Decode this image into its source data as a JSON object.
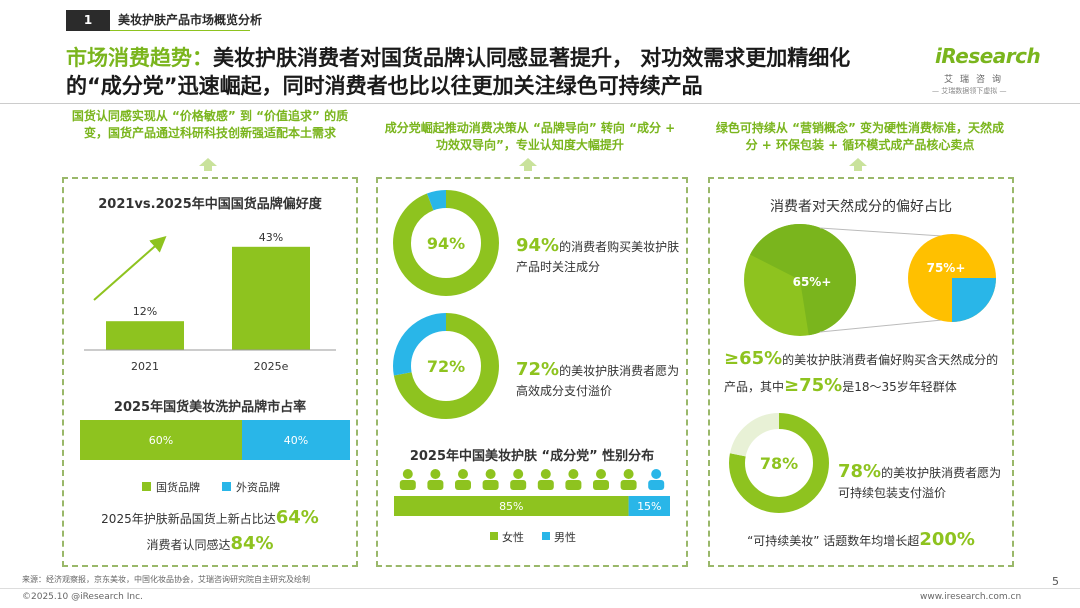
{
  "header": {
    "section_number": "1",
    "section_title": "美妆护肤产品市场概览分析",
    "headline_lead": "市场消费趋势：",
    "headline_rest": "美妆护肤消费者对国货品牌认同感显著提升， 对功效需求更加精细化的“成分党”迅速崛起，同时消费者也比以往更加关注绿色可持续产品",
    "logo_word": "iResearch",
    "logo_cn": "艾瑞咨询",
    "logo_tag": "— 艾瑞数据领下虚拟 —"
  },
  "columns": {
    "left_intro": "国货认同感实现从 “价格敏感” 到 “价值追求” 的质变，国货产品通过科研科技创新强适配本土需求",
    "middle_intro": "成分党崛起推动消费决策从 “品牌导向” 转向 “成分 + 功效双导向”，专业认知度大幅提升",
    "right_intro": "绿色可持续从 “营销概念” 变为硬性消费标准，天然成分 + 环保包装 + 循环模式成产品核心卖点"
  },
  "left_panel": {
    "stat_line1_text": "2025年护肤新品国货上新占比达",
    "stat_line1_pct": "64%",
    "stat_line2_text": "消费者认同感达",
    "stat_line2_pct": "84%"
  },
  "middle_panel": {
    "stat1_pct": "94%",
    "stat1_text": "的消费者购买美妆护肤产品时关注成分",
    "stat2_pct": "72%",
    "stat2_text": "的美妆护肤消费者愿为高效成分支付溢价"
  },
  "right_panel": {
    "stat1_pct": "≥65%",
    "stat1_text_a": "的美妆护肤消费者偏好购买含天然成分的产品，其中",
    "stat1_pct2": "≥75%",
    "stat1_text_b": "是18～35岁年轻群体",
    "stat2_pct": "78%",
    "stat2_text": "的美妆护肤消费者愿为可持续包装支付溢价",
    "stat3_text": "“可持续美妆” 话题数年均增长超",
    "stat3_pct": "200%"
  },
  "colors": {
    "green": "#8ec31f",
    "light_green": "#c9e29b",
    "blue": "#29b6e8",
    "yellow": "#ffc000",
    "dash": "#9ab86a"
  },
  "chart_data": [
    {
      "type": "bar",
      "title": "2021vs.2025年中国国货品牌偏好度",
      "categories": [
        "2021",
        "2025e"
      ],
      "values": [
        12,
        43
      ],
      "value_labels": [
        "12%",
        "43%"
      ],
      "ylim": [
        0,
        50
      ]
    },
    {
      "type": "bar",
      "title": "2025年国货美妆洗护品牌市占率",
      "stacked": true,
      "orientation": "horizontal",
      "series": [
        {
          "name": "国货品牌",
          "values": [
            60
          ],
          "label": "60%",
          "color": "#8ec31f"
        },
        {
          "name": "外资品牌",
          "values": [
            40
          ],
          "label": "40%",
          "color": "#29b6e8"
        }
      ]
    },
    {
      "type": "pie",
      "donut": true,
      "values": [
        94,
        6
      ],
      "center_label": "94%",
      "colors": [
        "#8ec31f",
        "#29b6e8"
      ]
    },
    {
      "type": "pie",
      "donut": true,
      "values": [
        72,
        28
      ],
      "center_label": "72%",
      "colors": [
        "#8ec31f",
        "#29b6e8"
      ]
    },
    {
      "type": "bar",
      "title": "2025年中国美妆护肤 “成分党” 性别分布",
      "stacked": true,
      "orientation": "horizontal",
      "series": [
        {
          "name": "女性",
          "values": [
            85
          ],
          "label": "85%",
          "color": "#8ec31f"
        },
        {
          "name": "男性",
          "values": [
            15
          ],
          "label": "15%",
          "color": "#29b6e8"
        }
      ]
    },
    {
      "type": "pie",
      "title": "消费者对天然成分的偏好占比",
      "values": [
        65,
        35
      ],
      "center_label": "65%+",
      "colors": [
        "#8ec31f",
        "#ffffff"
      ],
      "sub": {
        "values": [
          75,
          25
        ],
        "label": "75%+",
        "colors": [
          "#ffc000",
          "#29b6e8"
        ]
      }
    },
    {
      "type": "pie",
      "donut": true,
      "values": [
        78,
        22
      ],
      "center_label": "78%",
      "colors": [
        "#8ec31f",
        "#ffffff"
      ]
    }
  ],
  "footer": {
    "source": "来源：经济观察报，京东美妆，中国化妆品协会，艾瑞咨询研究院自主研究及绘制",
    "copyright": "©2025.10 @iResearch Inc.",
    "url": "www.iresearch.com.cn",
    "page": "5"
  }
}
